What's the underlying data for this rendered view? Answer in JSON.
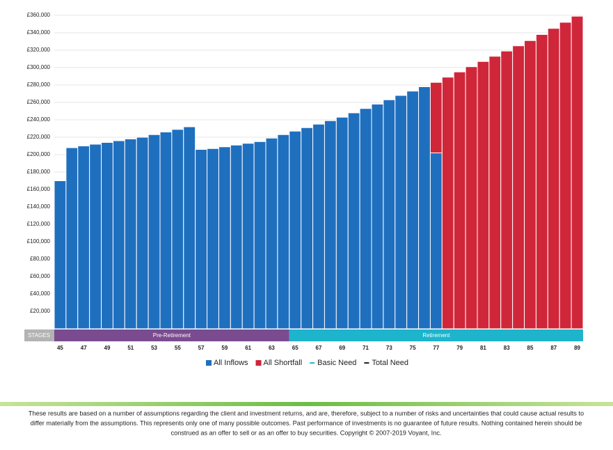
{
  "chart_data": {
    "type": "stacked_bar",
    "categories": [
      "45",
      null,
      "47",
      null,
      "49",
      null,
      "51",
      null,
      "53",
      null,
      "55",
      null,
      "57",
      null,
      "59",
      null,
      "61",
      null,
      "63",
      null,
      "65",
      null,
      "67",
      null,
      "69",
      null,
      "71",
      null,
      "73",
      null,
      "75",
      null,
      "77",
      null,
      "79",
      null,
      "81",
      null,
      "83",
      null,
      "85",
      null,
      "87",
      null,
      "89"
    ],
    "series": [
      {
        "name": "All Inflows",
        "color": "#1f6fbf",
        "values": [
          170000,
          208000,
          210000,
          212000,
          214000,
          216000,
          218000,
          220000,
          223000,
          226000,
          229000,
          232000,
          206000,
          207000,
          209000,
          211000,
          213000,
          215000,
          219000,
          223000,
          227000,
          231000,
          235000,
          239000,
          243000,
          248000,
          253000,
          258000,
          263000,
          268000,
          273000,
          278000,
          202000,
          0,
          0,
          0,
          0,
          0,
          0,
          0,
          0,
          0,
          0,
          0,
          0
        ]
      },
      {
        "name": "All Shortfall",
        "color": "#d0263a",
        "values": [
          0,
          0,
          0,
          0,
          0,
          0,
          0,
          0,
          0,
          0,
          0,
          0,
          0,
          0,
          0,
          0,
          0,
          0,
          0,
          0,
          0,
          0,
          0,
          0,
          0,
          0,
          0,
          0,
          0,
          0,
          0,
          0,
          81000,
          289000,
          295000,
          301000,
          307000,
          313000,
          319000,
          325000,
          331000,
          338000,
          345000,
          352000,
          359000
        ]
      }
    ],
    "line_legend": [
      {
        "name": "Basic Need",
        "color": "#29b6d6"
      },
      {
        "name": "Total Need",
        "color": "#222222"
      }
    ],
    "ylim": [
      0,
      360000
    ],
    "yticks": [
      {
        "value": 20000,
        "label": "£20,000"
      },
      {
        "value": 40000,
        "label": "£40,000"
      },
      {
        "value": 60000,
        "label": "£60,000"
      },
      {
        "value": 80000,
        "label": "£80,000"
      },
      {
        "value": 100000,
        "label": "£100,000"
      },
      {
        "value": 120000,
        "label": "£120,000"
      },
      {
        "value": 140000,
        "label": "£140,000"
      },
      {
        "value": 160000,
        "label": "£160,000"
      },
      {
        "value": 180000,
        "label": "£180,000"
      },
      {
        "value": 200000,
        "label": "£200,000"
      },
      {
        "value": 220000,
        "label": "£220,000"
      },
      {
        "value": 240000,
        "label": "£240,000"
      },
      {
        "value": 260000,
        "label": "£260,000"
      },
      {
        "value": 280000,
        "label": "£280,000"
      },
      {
        "value": 300000,
        "label": "£300,000"
      },
      {
        "value": 320000,
        "label": "£320,000"
      },
      {
        "value": 340000,
        "label": "£340,000"
      },
      {
        "value": 360000,
        "label": "£360,000"
      }
    ],
    "grid": true,
    "stages": {
      "label": "STAGES",
      "items": [
        {
          "name": "Pre-Retirement",
          "start": 45,
          "end": 64,
          "color": "#7a4b8e"
        },
        {
          "name": "Retirement",
          "start": 65,
          "end": 89,
          "color": "#1db4cc"
        }
      ]
    }
  },
  "footnote": [
    "These results are based on a number of assumptions regarding the client and investment returns, and are, therefore, subject to a number of risks and uncertainties that could cause actual results to",
    "differ materially from the assumptions. This represents only one of many possible outcomes. Past performance of investments is no guarantee of future results. Nothing contained herein should be",
    "construed as an offer to sell or as an offer to buy securities. Copyright © 2007-2019 Voyant, Inc."
  ]
}
